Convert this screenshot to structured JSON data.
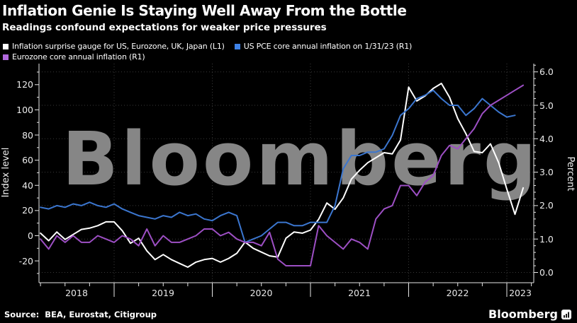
{
  "header": {
    "title": "Inflation Genie Is Staying Well Away From the Bottle",
    "subtitle": "Readings confound expectations for weaker price pressures"
  },
  "legend": [
    {
      "label": "Inflation surprise gauge for US, Eurozone, UK, Japan (L1)",
      "swatch_color": "#ffffff"
    },
    {
      "label": "US PCE core annual inflation on 1/31/23 (R1)",
      "swatch_color": "#3e82e8"
    },
    {
      "label": "Eurozone core annual inflation (R1)",
      "swatch_color": "#b168dd"
    }
  ],
  "watermark": "Bloomberg",
  "footer": {
    "source": "Source:  BEA, Eurostat, Citigroup",
    "logo": "Bloomberg",
    "logo_icon": "bar-chart-in-rounded-square"
  },
  "colors": {
    "background": "#000000",
    "grid": "#3a3a3a",
    "axis": "#e6e6e6",
    "watermark": "#868686",
    "white_series": "#ffffff",
    "blue_series": "#3b76cf",
    "purple_series": "#9d4fc4"
  },
  "chart_data": {
    "type": "line",
    "title": "Inflation Genie Is Staying Well Away From the Bottle",
    "x_frequency": "monthly",
    "x_start": "2018-03",
    "grid": "dotted",
    "x_axis": {
      "year_labels": [
        "2018",
        "2019",
        "2020",
        "2021",
        "2022",
        "2023"
      ],
      "range_years": [
        2017.75,
        2023.27
      ]
    },
    "left_axis": {
      "label": "Index level",
      "tick_labels": [
        "120",
        "100",
        "80",
        "60",
        "40",
        "20",
        "0",
        "-20"
      ],
      "tick_values": [
        120,
        100,
        80,
        60,
        40,
        20,
        0,
        -20
      ],
      "range": [
        -32,
        130
      ]
    },
    "right_axis": {
      "label": "Percent",
      "tick_labels": [
        "6.0",
        "5.0",
        "4.0",
        "3.0",
        "2.0",
        "1.0",
        "0.0"
      ],
      "tick_values": [
        6,
        5,
        4,
        3,
        2,
        1,
        0
      ],
      "range": [
        0,
        6.2
      ]
    },
    "series": [
      {
        "name": "Inflation surprise gauge for US, Eurozone, UK, Japan (L1)",
        "axis": "left",
        "color": "#ffffff",
        "values": [
          2,
          -4,
          3,
          -3,
          1,
          5,
          6,
          8,
          11,
          11,
          4,
          -6,
          -2,
          -12,
          -19,
          -15,
          -19,
          -22,
          -25,
          -21,
          -19,
          -18,
          -21,
          -18,
          -14,
          -5,
          -10,
          -13,
          -16,
          -17,
          -2,
          3,
          2,
          4.5,
          13,
          26,
          21,
          30,
          45,
          52,
          58,
          62,
          66,
          65,
          76,
          118,
          107,
          111,
          117,
          121,
          110,
          93,
          81,
          67,
          66,
          73,
          58,
          37,
          17,
          38
        ]
      },
      {
        "name": "US PCE core annual inflation on 1/31/23 (R1)",
        "axis": "right",
        "color": "#3b76cf",
        "values": [
          1.95,
          1.9,
          2.0,
          1.95,
          2.05,
          2.0,
          2.1,
          2.0,
          1.95,
          2.05,
          1.9,
          1.8,
          1.7,
          1.65,
          1.6,
          1.7,
          1.65,
          1.8,
          1.7,
          1.75,
          1.6,
          1.55,
          1.7,
          1.8,
          1.7,
          0.9,
          1.0,
          1.1,
          1.3,
          1.5,
          1.5,
          1.4,
          1.4,
          1.5,
          1.5,
          1.5,
          2.0,
          3.1,
          3.5,
          3.5,
          3.6,
          3.6,
          3.7,
          4.1,
          4.7,
          4.9,
          5.2,
          5.3,
          5.45,
          5.2,
          5.0,
          5.0,
          4.7,
          4.9,
          5.2,
          5.0,
          4.8,
          4.65,
          4.7
        ]
      },
      {
        "name": "Eurozone core annual inflation (R1)",
        "axis": "right",
        "color": "#9d4fc4",
        "values": [
          1.0,
          0.7,
          1.1,
          0.9,
          1.1,
          0.9,
          0.9,
          1.1,
          1.0,
          0.9,
          1.1,
          1.0,
          0.8,
          1.3,
          0.8,
          1.1,
          0.9,
          0.9,
          1.0,
          1.1,
          1.3,
          1.3,
          1.1,
          1.2,
          1.0,
          0.9,
          0.9,
          0.8,
          1.2,
          0.4,
          0.2,
          0.2,
          0.2,
          0.2,
          1.4,
          1.1,
          0.9,
          0.7,
          1.0,
          0.9,
          0.7,
          1.6,
          1.9,
          2.0,
          2.6,
          2.6,
          2.3,
          2.7,
          2.9,
          3.5,
          3.8,
          3.7,
          4.0,
          4.3,
          4.75,
          5.0,
          5.15,
          5.3,
          5.45,
          5.6
        ]
      }
    ]
  }
}
